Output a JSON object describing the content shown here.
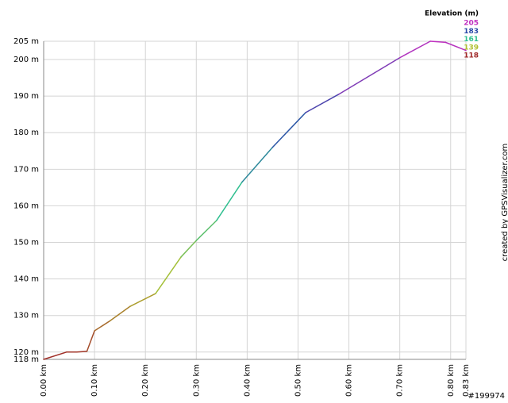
{
  "chart_data": {
    "type": "line",
    "legend_title": "Elevation (m)",
    "legend": [
      {
        "value": 205,
        "color": "#c030c0"
      },
      {
        "value": 183,
        "color": "#2a4aa8"
      },
      {
        "value": 161,
        "color": "#30c090"
      },
      {
        "value": 139,
        "color": "#b0c030"
      },
      {
        "value": 118,
        "color": "#a02828"
      }
    ],
    "x": [
      0,
      0.045,
      0.065,
      0.085,
      0.1,
      0.13,
      0.17,
      0.22,
      0.27,
      0.3,
      0.34,
      0.39,
      0.45,
      0.515,
      0.58,
      0.7,
      0.76,
      0.79,
      0.83
    ],
    "series": [
      {
        "values": [
          118,
          120,
          120,
          120.2,
          125.8,
          128.5,
          132.5,
          136,
          146,
          150.5,
          156,
          166.5,
          176,
          185.5,
          190.5,
          200.5,
          205,
          204.7,
          202.5
        ]
      }
    ],
    "xlim": [
      0,
      0.83
    ],
    "xticks": [
      {
        "value": 0,
        "label": "0.00 km"
      },
      {
        "value": 0.1,
        "label": "0.10 km"
      },
      {
        "value": 0.2,
        "label": "0.20 km"
      },
      {
        "value": 0.3,
        "label": "0.30 km"
      },
      {
        "value": 0.4,
        "label": "0.40 km"
      },
      {
        "value": 0.5,
        "label": "0.50 km"
      },
      {
        "value": 0.6,
        "label": "0.60 km"
      },
      {
        "value": 0.7,
        "label": "0.70 km"
      },
      {
        "value": 0.8,
        "label": "0.80 km"
      },
      {
        "value": 0.83,
        "label": "0.83 km"
      }
    ],
    "ylim": [
      118,
      205
    ],
    "yticks": [
      {
        "value": 118,
        "label": "118 m"
      },
      {
        "value": 120,
        "label": "120 m"
      },
      {
        "value": 130,
        "label": "130 m"
      },
      {
        "value": 140,
        "label": "140 m"
      },
      {
        "value": 150,
        "label": "150 m"
      },
      {
        "value": 160,
        "label": "160 m"
      },
      {
        "value": 170,
        "label": "170 m"
      },
      {
        "value": 180,
        "label": "180 m"
      },
      {
        "value": 190,
        "label": "190 m"
      },
      {
        "value": 200,
        "label": "200 m"
      },
      {
        "value": 205,
        "label": "205 m"
      }
    ],
    "grid": true,
    "credit": "created by GPSVisualizer.com",
    "id_label": "#199974"
  }
}
